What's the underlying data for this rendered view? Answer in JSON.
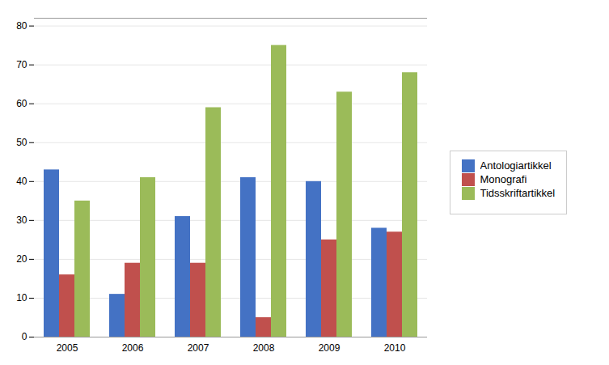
{
  "chart_data": {
    "type": "bar",
    "categories": [
      "2005",
      "2006",
      "2007",
      "2008",
      "2009",
      "2010"
    ],
    "series": [
      {
        "name": "Antologiartikkel",
        "color": "#4472C4",
        "values": [
          43,
          11,
          31,
          41,
          40,
          28
        ]
      },
      {
        "name": "Monografi",
        "color": "#C0504D",
        "values": [
          16,
          19,
          19,
          5,
          25,
          27
        ]
      },
      {
        "name": "Tidsskriftartikkel",
        "color": "#9BBB59",
        "values": [
          35,
          41,
          59,
          75,
          63,
          68
        ]
      }
    ],
    "ylim": [
      0,
      82
    ],
    "yticks": [
      0,
      10,
      20,
      30,
      40,
      50,
      60,
      70,
      80
    ],
    "grid": true,
    "legend": "right"
  }
}
